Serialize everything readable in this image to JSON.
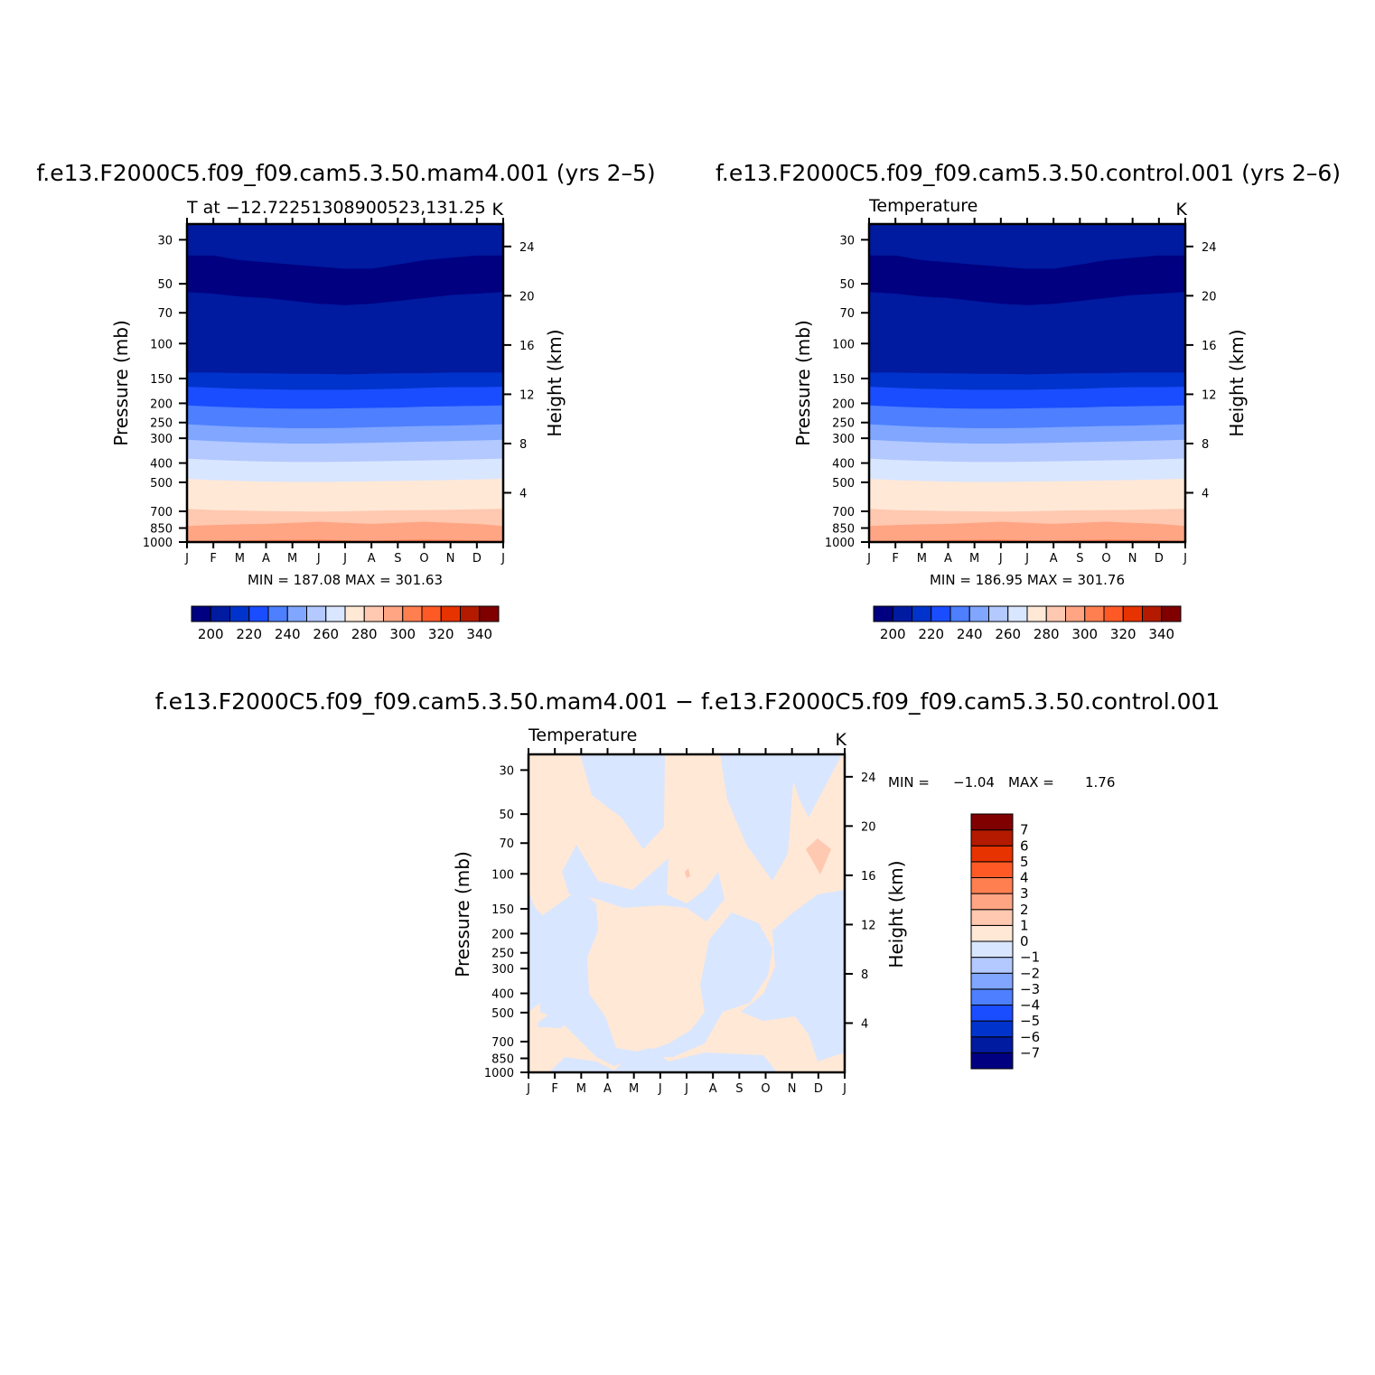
{
  "chart_data": [
    {
      "type": "heatmap",
      "title": "f.e13.F2000C5.f09_f09.cam5.3.50.mam4.001 (yrs 2–5)",
      "subtitle_left": "T at −12.72251308900523,131.25",
      "subtitle_right": "K",
      "xlabel": "",
      "ylabel": "Pressure (mb)",
      "y2label": "Height (km)",
      "x_ticklabels": [
        "J",
        "F",
        "M",
        "A",
        "M",
        "J",
        "J",
        "A",
        "S",
        "O",
        "N",
        "D",
        "J"
      ],
      "y_ticklabels": [
        "30",
        "50",
        "70",
        "100",
        "150",
        "200",
        "250",
        "300",
        "400",
        "500",
        "700",
        "850",
        "1000"
      ],
      "y2_ticklabels": [
        "24",
        "20",
        "16",
        "12",
        "8",
        "4"
      ],
      "ylim": [
        1000,
        25
      ],
      "stats": "MIN = 187.08 MAX = 301.63",
      "min": 187.08,
      "max": 301.63,
      "colorbar_labels": [
        "200",
        "220",
        "240",
        "260",
        "280",
        "300",
        "320",
        "340"
      ],
      "colorbar_levels": [
        190,
        200,
        210,
        220,
        230,
        240,
        250,
        260,
        270,
        280,
        290,
        300,
        310,
        320,
        330,
        340,
        350
      ],
      "colors": [
        "#000080",
        "#001aa0",
        "#0033cc",
        "#1a4dff",
        "#4d7fff",
        "#80a6ff",
        "#b3c9ff",
        "#d9e6ff",
        "#ffe8d6",
        "#ffc8b0",
        "#ffa584",
        "#ff7f50",
        "#ff5a26",
        "#e63300",
        "#b31a00",
        "#800000"
      ]
    },
    {
      "type": "heatmap",
      "title": "f.e13.F2000C5.f09_f09.cam5.3.50.control.001 (yrs 2–6)",
      "subtitle_left": "Temperature",
      "subtitle_right": "K",
      "xlabel": "",
      "ylabel": "Pressure (mb)",
      "y2label": "Height (km)",
      "x_ticklabels": [
        "J",
        "F",
        "M",
        "A",
        "M",
        "J",
        "J",
        "A",
        "S",
        "O",
        "N",
        "D",
        "J"
      ],
      "y_ticklabels": [
        "30",
        "50",
        "70",
        "100",
        "150",
        "200",
        "250",
        "300",
        "400",
        "500",
        "700",
        "850",
        "1000"
      ],
      "y2_ticklabels": [
        "24",
        "20",
        "16",
        "12",
        "8",
        "4"
      ],
      "ylim": [
        1000,
        25
      ],
      "stats": "MIN = 186.95 MAX = 301.76",
      "min": 186.95,
      "max": 301.76,
      "colorbar_labels": [
        "200",
        "220",
        "240",
        "260",
        "280",
        "300",
        "320",
        "340"
      ],
      "colorbar_levels": [
        190,
        200,
        210,
        220,
        230,
        240,
        250,
        260,
        270,
        280,
        290,
        300,
        310,
        320,
        330,
        340,
        350
      ],
      "colors": [
        "#000080",
        "#001aa0",
        "#0033cc",
        "#1a4dff",
        "#4d7fff",
        "#80a6ff",
        "#b3c9ff",
        "#d9e6ff",
        "#ffe8d6",
        "#ffc8b0",
        "#ffa584",
        "#ff7f50",
        "#ff5a26",
        "#e63300",
        "#b31a00",
        "#800000"
      ]
    },
    {
      "type": "heatmap",
      "title": "f.e13.F2000C5.f09_f09.cam5.3.50.mam4.001 − f.e13.F2000C5.f09_f09.cam5.3.50.control.001",
      "subtitle_left": "Temperature",
      "subtitle_right": "K",
      "xlabel": "",
      "ylabel": "Pressure (mb)",
      "y2label": "Height (km)",
      "x_ticklabels": [
        "J",
        "F",
        "M",
        "A",
        "M",
        "J",
        "J",
        "A",
        "S",
        "O",
        "N",
        "D",
        "J"
      ],
      "y_ticklabels": [
        "30",
        "50",
        "70",
        "100",
        "150",
        "200",
        "250",
        "300",
        "400",
        "500",
        "700",
        "850",
        "1000"
      ],
      "y2_ticklabels": [
        "24",
        "20",
        "16",
        "12",
        "8",
        "4"
      ],
      "ylim": [
        1000,
        25
      ],
      "stats_min_label": "MIN =",
      "stats_min": "−1.04",
      "stats_max_label": "MAX =",
      "stats_max": "1.76",
      "min": -1.04,
      "max": 1.76,
      "colorbar_labels": [
        "7",
        "6",
        "5",
        "4",
        "3",
        "2",
        "1",
        "0",
        "−1",
        "−2",
        "−3",
        "−4",
        "−5",
        "−6",
        "−7"
      ],
      "colorbar_levels": [
        -8,
        -7,
        -6,
        -5,
        -4,
        -3,
        -2,
        -1,
        0,
        1,
        2,
        3,
        4,
        5,
        6,
        7,
        8
      ],
      "colors": [
        "#000080",
        "#001aa0",
        "#0033cc",
        "#1a4dff",
        "#4d7fff",
        "#80a6ff",
        "#b3c9ff",
        "#d9e6ff",
        "#ffe8d6",
        "#ffc8b0",
        "#ffa584",
        "#ff7f50",
        "#ff5a26",
        "#e63300",
        "#b31a00",
        "#800000"
      ]
    }
  ]
}
